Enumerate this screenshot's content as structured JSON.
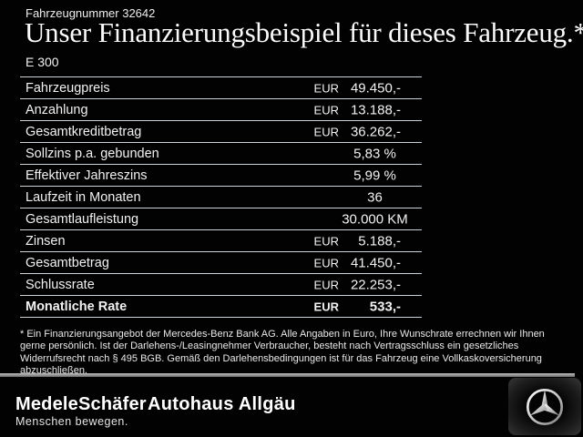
{
  "header": {
    "vehicle_number": "Fahrzeugnummer 32642",
    "title": "Unser Finanzierungsbeispiel für dieses Fahrzeug.*",
    "model": "E 300"
  },
  "finance_table": {
    "rows": [
      {
        "label": "Fahrzeugpreis",
        "currency": "EUR",
        "value": "49.450,-",
        "bold": false
      },
      {
        "label": "Anzahlung",
        "currency": "EUR",
        "value": "13.188,-",
        "bold": false
      },
      {
        "label": "Gesamtkreditbetrag",
        "currency": "EUR",
        "value": "36.262,-",
        "bold": false
      },
      {
        "label": "Sollzins p.a. gebunden",
        "currency": "",
        "value": "5,83 %",
        "bold": false
      },
      {
        "label": "Effektiver Jahreszins",
        "currency": "",
        "value": "5,99 %",
        "bold": false
      },
      {
        "label": "Laufzeit in Monaten",
        "currency": "",
        "value": "36",
        "bold": false
      },
      {
        "label": "Gesamtlaufleistung",
        "currency": "",
        "value": "30.000 KM",
        "bold": false
      },
      {
        "label": "Zinsen",
        "currency": "EUR",
        "value": "5.188,-",
        "bold": false
      },
      {
        "label": "Gesamtbetrag",
        "currency": "EUR",
        "value": "41.450,-",
        "bold": false
      },
      {
        "label": "Schlussrate",
        "currency": "EUR",
        "value": "22.253,-",
        "bold": false
      },
      {
        "label": "Monatliche Rate",
        "currency": "EUR",
        "value": "533,-",
        "bold": true
      }
    ]
  },
  "footnote": {
    "text": "* Ein Finanzierungsangebot der Mercedes-Benz Bank AG. Alle Angaben in Euro, Ihre Wunschrate errechnen wir Ihnen gerne persönlich. Ist der Darlehens-/Leasingnehmer Verbraucher, besteht nach Vertragsschluss ein gesetzliches Widerrufsrecht nach § 495 BGB. Gemäß den Darlehensbedingungen ist für das Fahrzeug eine Vollkaskoversicherung abzuschließen."
  },
  "footer": {
    "dealer_logo": "MedeleSchäfer",
    "dealer_tagline": "Menschen bewegen.",
    "dealer_name2": "Autohaus Allgäu",
    "brand_logo_name": "mercedes-benz-star"
  },
  "colors": {
    "background": "#020202",
    "text": "#f2f2f2",
    "table_line": "#ccd3d8",
    "divider_bar": "#9a9a9a",
    "star_silver": "#c0c0c0"
  }
}
